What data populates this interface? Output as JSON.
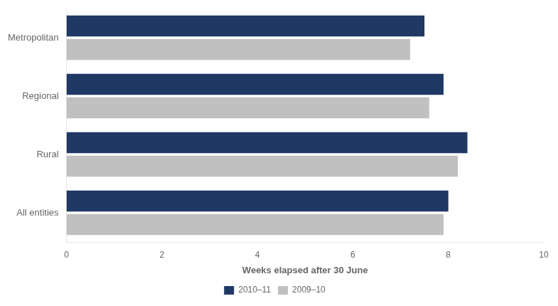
{
  "chart_data": {
    "type": "bar",
    "orientation": "horizontal",
    "categories": [
      "All entities",
      "Rural",
      "Regional",
      "Metropolitan"
    ],
    "series": [
      {
        "name": "2010–11",
        "color": "#1F3864",
        "values": [
          8.0,
          8.4,
          7.9,
          7.5
        ]
      },
      {
        "name": "2009–10",
        "color": "#C0C0C0",
        "values": [
          7.9,
          8.2,
          7.6,
          7.2
        ]
      }
    ],
    "xlabel": "Weeks elapsed after 30 June",
    "xlim": [
      0,
      10
    ],
    "xticks": [
      0,
      2,
      4,
      6,
      8,
      10
    ],
    "grid": false,
    "legend": "bottom"
  }
}
